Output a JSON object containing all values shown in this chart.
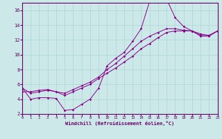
{
  "bg_color": "#cce8e8",
  "line_color": "#880088",
  "grid_color": "#aad4d4",
  "xlabel": "Windchill (Refroidissement éolien,°C)",
  "xlim": [
    0,
    23
  ],
  "ylim": [
    2,
    17
  ],
  "xticks": [
    0,
    1,
    2,
    3,
    4,
    5,
    6,
    7,
    8,
    9,
    10,
    11,
    12,
    13,
    14,
    15,
    16,
    17,
    18,
    19,
    20,
    21,
    22,
    23
  ],
  "yticks": [
    2,
    4,
    6,
    8,
    10,
    12,
    14,
    16
  ],
  "line_a_x": [
    0,
    1,
    2,
    3,
    4,
    5,
    6,
    7,
    8,
    9,
    10,
    11,
    12,
    13,
    14,
    15,
    16,
    17,
    18,
    19,
    20,
    21,
    22,
    23
  ],
  "line_a_y": [
    5.5,
    4.0,
    4.2,
    4.2,
    4.1,
    2.5,
    2.6,
    3.3,
    4.0,
    5.5,
    8.5,
    9.5,
    10.3,
    11.8,
    13.5,
    17.2,
    17.1,
    17.5,
    15.0,
    13.8,
    13.2,
    12.5,
    12.5,
    13.2
  ],
  "line_b_x": [
    0,
    1,
    2,
    3,
    4,
    5,
    6,
    7,
    8,
    9,
    10,
    11,
    12,
    13,
    14,
    15,
    16,
    17,
    18,
    19,
    20,
    21,
    22,
    23
  ],
  "line_b_y": [
    5.0,
    5.0,
    5.2,
    5.3,
    5.0,
    4.5,
    5.0,
    5.5,
    6.0,
    6.8,
    7.5,
    8.2,
    9.0,
    9.8,
    10.8,
    11.5,
    12.3,
    13.0,
    13.2,
    13.2,
    13.2,
    12.6,
    12.6,
    13.2
  ],
  "line_c_x": [
    0,
    1,
    2,
    3,
    4,
    5,
    6,
    7,
    8,
    9,
    10,
    11,
    12,
    13,
    14,
    15,
    16,
    17,
    18,
    19,
    20,
    21,
    22,
    23
  ],
  "line_c_y": [
    5.5,
    4.8,
    5.0,
    5.2,
    5.0,
    4.8,
    5.3,
    5.8,
    6.3,
    7.0,
    8.0,
    8.8,
    9.8,
    10.8,
    11.8,
    12.5,
    13.0,
    13.5,
    13.5,
    13.3,
    13.2,
    12.8,
    12.6,
    13.2
  ]
}
